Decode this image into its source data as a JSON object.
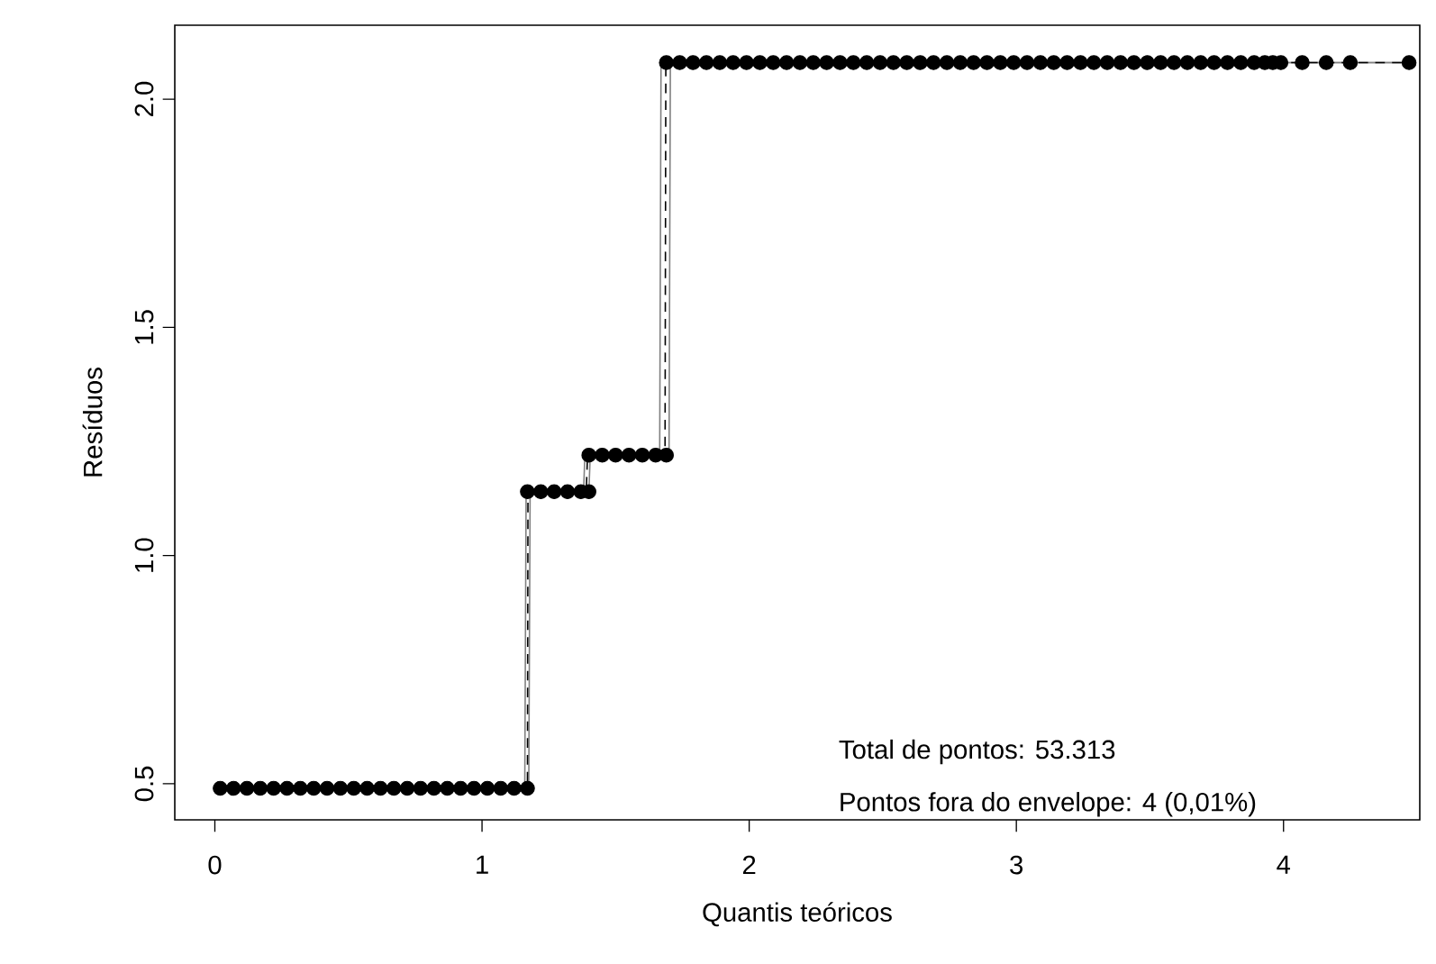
{
  "chart_data": {
    "type": "scatter",
    "xlabel": "Quantis teóricos",
    "ylabel": "Resíduos",
    "xlim": [
      -0.15,
      4.51
    ],
    "ylim": [
      0.421,
      2.162
    ],
    "xticks": [
      0,
      1,
      2,
      3,
      4
    ],
    "yticks": [
      {
        "value": 0.5,
        "label": "0.5"
      },
      {
        "value": 1.0,
        "label": "1.0"
      },
      {
        "value": 1.5,
        "label": "1.5"
      },
      {
        "value": 2.0,
        "label": "2.0"
      }
    ],
    "grid": false,
    "annotations": [
      "Total de pontos: 53.313",
      "Pontos fora do envelope: 4 (0,01%)"
    ],
    "series": [
      {
        "marker": "circle",
        "color": "#000000",
        "x": [
          0.02,
          0.07,
          0.12,
          0.17,
          0.22,
          0.27,
          0.32,
          0.37,
          0.42,
          0.47,
          0.52,
          0.57,
          0.62,
          0.67,
          0.72,
          0.77,
          0.82,
          0.87,
          0.92,
          0.97,
          1.02,
          1.07,
          1.12,
          1.17,
          1.17,
          1.22,
          1.27,
          1.32,
          1.37,
          1.4,
          1.4,
          1.45,
          1.5,
          1.55,
          1.6,
          1.65,
          1.69,
          1.69,
          1.74,
          1.79,
          1.84,
          1.89,
          1.94,
          1.99,
          2.04,
          2.09,
          2.14,
          2.19,
          2.24,
          2.29,
          2.34,
          2.39,
          2.44,
          2.49,
          2.54,
          2.59,
          2.64,
          2.69,
          2.74,
          2.79,
          2.84,
          2.89,
          2.94,
          2.99,
          3.04,
          3.09,
          3.14,
          3.19,
          3.24,
          3.29,
          3.34,
          3.39,
          3.44,
          3.49,
          3.54,
          3.59,
          3.64,
          3.69,
          3.74,
          3.79,
          3.84,
          3.89,
          3.93,
          3.96,
          3.99,
          4.07,
          4.16,
          4.25,
          4.47
        ],
        "values": [
          0.49,
          0.49,
          0.49,
          0.49,
          0.49,
          0.49,
          0.49,
          0.49,
          0.49,
          0.49,
          0.49,
          0.49,
          0.49,
          0.49,
          0.49,
          0.49,
          0.49,
          0.49,
          0.49,
          0.49,
          0.49,
          0.49,
          0.49,
          0.49,
          1.14,
          1.14,
          1.14,
          1.14,
          1.14,
          1.14,
          1.22,
          1.22,
          1.22,
          1.22,
          1.22,
          1.22,
          1.22,
          2.08,
          2.08,
          2.08,
          2.08,
          2.08,
          2.08,
          2.08,
          2.08,
          2.08,
          2.08,
          2.08,
          2.08,
          2.08,
          2.08,
          2.08,
          2.08,
          2.08,
          2.08,
          2.08,
          2.08,
          2.08,
          2.08,
          2.08,
          2.08,
          2.08,
          2.08,
          2.08,
          2.08,
          2.08,
          2.08,
          2.08,
          2.08,
          2.08,
          2.08,
          2.08,
          2.08,
          2.08,
          2.08,
          2.08,
          2.08,
          2.08,
          2.08,
          2.08,
          2.08,
          2.08,
          2.08,
          2.08,
          2.08,
          2.08,
          2.08,
          2.08,
          2.08
        ]
      },
      {
        "type": "line",
        "line_style": "solid",
        "color": "#808080",
        "x": [
          0.0,
          1.16,
          1.165,
          1.38,
          1.385,
          1.665,
          1.67,
          4.47
        ],
        "values": [
          0.49,
          0.49,
          1.14,
          1.14,
          1.22,
          1.22,
          2.08,
          2.08
        ]
      },
      {
        "type": "line",
        "line_style": "solid",
        "color": "#808080",
        "x": [
          0.0,
          1.175,
          1.18,
          1.4,
          1.405,
          1.7,
          1.705,
          4.47
        ],
        "values": [
          0.49,
          0.49,
          1.14,
          1.14,
          1.22,
          1.22,
          2.08,
          2.08
        ]
      },
      {
        "type": "line",
        "line_style": "dashed",
        "color": "#000000",
        "x": [
          0.0,
          1.17,
          1.172,
          1.39,
          1.395,
          1.685,
          1.688,
          4.47
        ],
        "values": [
          0.49,
          0.49,
          1.14,
          1.14,
          1.22,
          1.22,
          2.08,
          2.08
        ]
      }
    ]
  }
}
